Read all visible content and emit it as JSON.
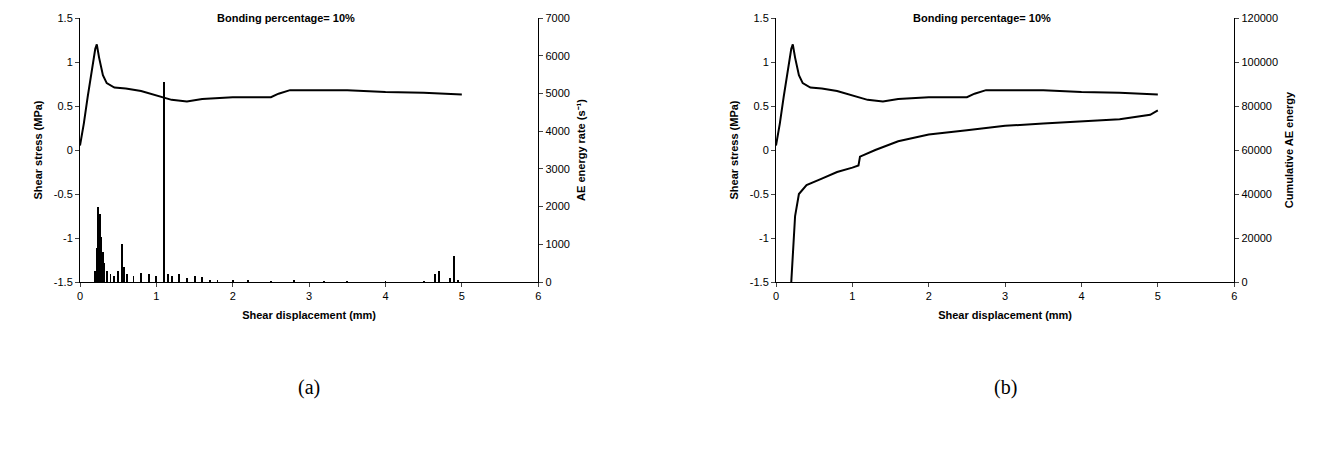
{
  "chart_data": [
    {
      "type": "line",
      "title": "Bonding percentage= 10%",
      "x_label": "Shear displacement (mm)",
      "y_label": "Shear stress (MPa)",
      "y2_label": "AE energy rate (s⁻¹)",
      "annotations": [
        "(a)"
      ],
      "xlim": [
        0,
        6
      ],
      "xticks": [
        0,
        1,
        2,
        3,
        4,
        5,
        6
      ],
      "ylim": [
        -1.5,
        1.5
      ],
      "yticks": [
        -1.5,
        -1,
        -0.5,
        0,
        0.5,
        1,
        1.5
      ],
      "y2lim": [
        0,
        7000
      ],
      "y2ticks": [
        0,
        1000,
        2000,
        3000,
        4000,
        5000,
        6000,
        7000
      ],
      "grid": false,
      "series": [
        {
          "type": "line",
          "color": "#000000",
          "x": [
            0,
            0.05,
            0.1,
            0.15,
            0.2,
            0.22,
            0.25,
            0.3,
            0.35,
            0.45,
            0.6,
            0.8,
            1.0,
            1.2,
            1.4,
            1.6,
            2.0,
            2.5,
            2.6,
            2.75,
            3.5,
            4.0,
            4.5,
            5.0
          ],
          "values": [
            0.05,
            0.3,
            0.6,
            0.9,
            1.15,
            1.2,
            1.05,
            0.85,
            0.76,
            0.71,
            0.7,
            0.67,
            0.62,
            0.57,
            0.55,
            0.58,
            0.6,
            0.6,
            0.64,
            0.68,
            0.68,
            0.66,
            0.65,
            0.63
          ]
        },
        {
          "type": "bar",
          "axis": "y2",
          "color": "#000000",
          "x": [
            0.2,
            0.22,
            0.24,
            0.26,
            0.28,
            0.3,
            0.32,
            0.35,
            0.4,
            0.45,
            0.5,
            0.55,
            0.58,
            0.62,
            0.7,
            0.8,
            0.9,
            1.0,
            1.1,
            1.15,
            1.2,
            1.3,
            1.4,
            1.5,
            1.6,
            1.7,
            1.8,
            2.0,
            2.2,
            2.5,
            2.8,
            3.2,
            3.5,
            4.0,
            4.5,
            4.65,
            4.7,
            4.85,
            4.9,
            4.95
          ],
          "values": [
            300,
            900,
            2000,
            1800,
            1200,
            800,
            500,
            300,
            200,
            150,
            300,
            1000,
            400,
            200,
            150,
            250,
            200,
            150,
            5300,
            200,
            150,
            200,
            100,
            150,
            120,
            60,
            50,
            40,
            40,
            20,
            30,
            10,
            10,
            10,
            20,
            200,
            300,
            100,
            700,
            50
          ]
        }
      ]
    },
    {
      "type": "line",
      "title": "Bonding percentage= 10%",
      "x_label": "Shear displacement (mm)",
      "y_label": "Shear stress (MPa)",
      "y2_label": "Cumulative AE energy",
      "annotations": [
        "(b)"
      ],
      "xlim": [
        0,
        6
      ],
      "xticks": [
        0,
        1,
        2,
        3,
        4,
        5,
        6
      ],
      "ylim": [
        -1.5,
        1.5
      ],
      "yticks": [
        -1.5,
        -1,
        -0.5,
        0,
        0.5,
        1,
        1.5
      ],
      "y2lim": [
        0,
        120000
      ],
      "y2ticks": [
        0,
        20000,
        40000,
        60000,
        80000,
        100000,
        120000
      ],
      "grid": false,
      "series": [
        {
          "type": "line",
          "color": "#000000",
          "x": [
            0,
            0.05,
            0.1,
            0.15,
            0.2,
            0.22,
            0.25,
            0.3,
            0.35,
            0.45,
            0.6,
            0.8,
            1.0,
            1.2,
            1.4,
            1.6,
            2.0,
            2.5,
            2.6,
            2.75,
            3.5,
            4.0,
            4.5,
            5.0
          ],
          "values": [
            0.05,
            0.3,
            0.6,
            0.9,
            1.15,
            1.2,
            1.05,
            0.85,
            0.76,
            0.71,
            0.7,
            0.67,
            0.62,
            0.57,
            0.55,
            0.58,
            0.6,
            0.6,
            0.64,
            0.68,
            0.68,
            0.66,
            0.65,
            0.63
          ]
        },
        {
          "type": "line",
          "axis": "y2",
          "color": "#000000",
          "x": [
            0.2,
            0.25,
            0.3,
            0.4,
            0.6,
            0.8,
            1.0,
            1.08,
            1.1,
            1.3,
            1.6,
            2.0,
            2.5,
            3.0,
            3.5,
            4.0,
            4.5,
            4.9,
            5.0
          ],
          "values": [
            0,
            30000,
            40000,
            44000,
            47000,
            50000,
            52000,
            53000,
            57000,
            60000,
            64000,
            67000,
            69000,
            71000,
            72000,
            73000,
            74000,
            76000,
            78000
          ]
        }
      ]
    }
  ]
}
